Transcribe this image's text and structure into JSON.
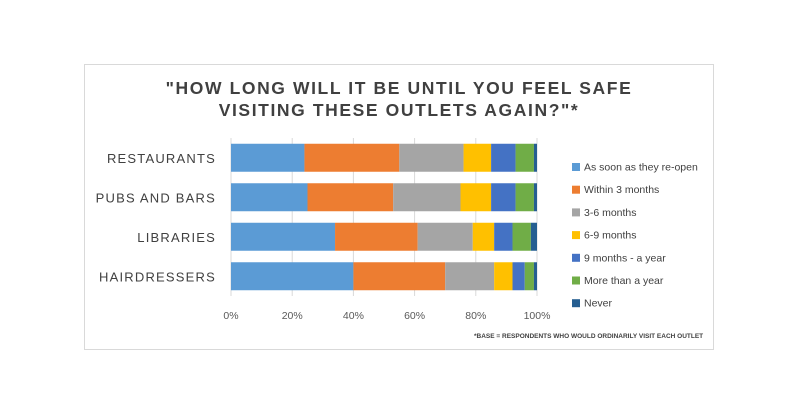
{
  "chart_data": {
    "type": "bar",
    "orientation": "horizontal",
    "stacked": true,
    "percent": true,
    "title_lines": [
      "\"HOW LONG WILL IT BE UNTIL YOU FEEL SAFE",
      "VISITING THESE OUTLETS AGAIN?\"*"
    ],
    "categories": [
      "RESTAURANTS",
      "PUBS AND BARS",
      "LIBRARIES",
      "HAIRDRESSERS"
    ],
    "series": [
      {
        "name": "As soon as they re-open",
        "color": "#5B9BD5",
        "values": [
          24,
          25,
          34,
          40
        ]
      },
      {
        "name": "Within 3 months",
        "color": "#ED7D31",
        "values": [
          31,
          28,
          27,
          30
        ]
      },
      {
        "name": "3-6 months",
        "color": "#A5A5A5",
        "values": [
          21,
          22,
          18,
          16
        ]
      },
      {
        "name": "6-9 months",
        "color": "#FFC000",
        "values": [
          9,
          10,
          7,
          6
        ]
      },
      {
        "name": "9 months - a year",
        "color": "#4472C4",
        "values": [
          8,
          8,
          6,
          4
        ]
      },
      {
        "name": "More than a year",
        "color": "#70AD47",
        "values": [
          6,
          6,
          6,
          3
        ]
      },
      {
        "name": "Never",
        "color": "#255E91",
        "values": [
          1,
          1,
          2,
          1
        ]
      }
    ],
    "x_ticks": [
      "0%",
      "20%",
      "40%",
      "60%",
      "80%",
      "100%"
    ],
    "xlim": [
      0,
      100
    ],
    "grid": true,
    "legend_position": "right",
    "footnote": "*BASE = RESPONDENTS WHO WOULD ORDINARILY VISIT EACH OUTLET"
  }
}
